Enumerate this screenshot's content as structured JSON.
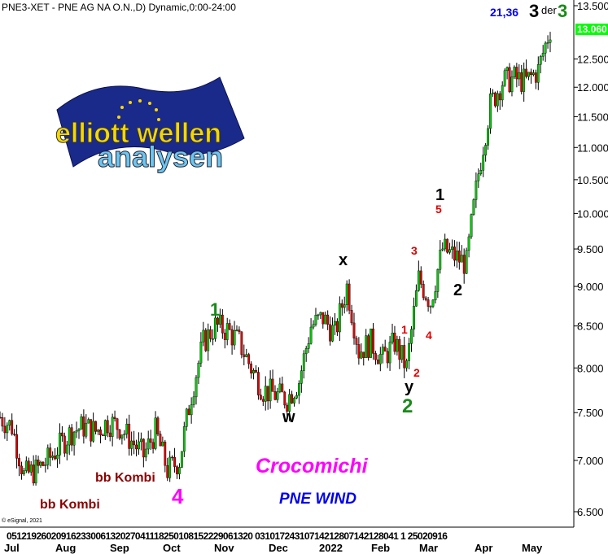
{
  "header": {
    "title": "PNE3-XET - PNE AG  NA O.N.,D) Dynamic,0:00-24:00",
    "copyright": "© eSignal, 2021"
  },
  "logo": {
    "line1": "elliott wellen",
    "line2": "analysen"
  },
  "chart_data": {
    "type": "candlestick",
    "yscale": "log",
    "ylim": [
      6.5,
      13.5
    ],
    "yticks": [
      "13.500",
      "12.500",
      "12.000",
      "11.500",
      "11.000",
      "10.500",
      "10.000",
      "9.500",
      "9.000",
      "8.500",
      "8.000",
      "7.500",
      "7.000",
      "6.500"
    ],
    "last_price": "13.060",
    "day_ticks": "05121926020916233006132027041118250108152229061320  03101724310714212807142128041 1  25020916",
    "month_ticks": [
      "Jul",
      "Aug",
      "Sep",
      "Oct",
      "Nov",
      "Dec",
      "2022",
      "Feb",
      "Mar",
      "Apr",
      "May"
    ],
    "weekly_close": [
      7.45,
      7.35,
      6.85,
      6.9,
      7.0,
      7.15,
      7.3,
      7.35,
      7.3,
      7.4,
      7.35,
      7.2,
      7.05,
      7.3,
      6.9,
      7.0,
      7.7,
      8.3,
      8.5,
      8.45,
      8.3,
      8.0,
      7.75,
      7.7,
      7.65,
      7.85,
      8.5,
      8.6,
      8.4,
      9.0,
      8.2,
      8.3,
      8.1,
      8.3,
      8.0,
      9.1,
      8.8,
      9.5,
      9.4,
      9.3,
      10.6,
      11.7,
      12.1,
      12.15,
      12.1,
      12.3,
      13.06
    ],
    "colors": {
      "up": "#00cc00",
      "down": "#e00000",
      "last_price_bg": "#00ff00"
    }
  },
  "annotations": {
    "value": "21,36",
    "wave_big3": "3",
    "der": "der",
    "wave_green3": "3",
    "green1": "1",
    "x": "x",
    "black1": "1",
    "red5": "5",
    "red3": "3",
    "red1": "1",
    "red4": "4",
    "red2": "2",
    "y": "y",
    "green2": "2",
    "black2": "2",
    "w": "w",
    "magenta4": "4",
    "bb1": "bb Kombi",
    "bb2": "bb Kombi",
    "author": "Crocomichi",
    "stock": "PNE WIND"
  }
}
